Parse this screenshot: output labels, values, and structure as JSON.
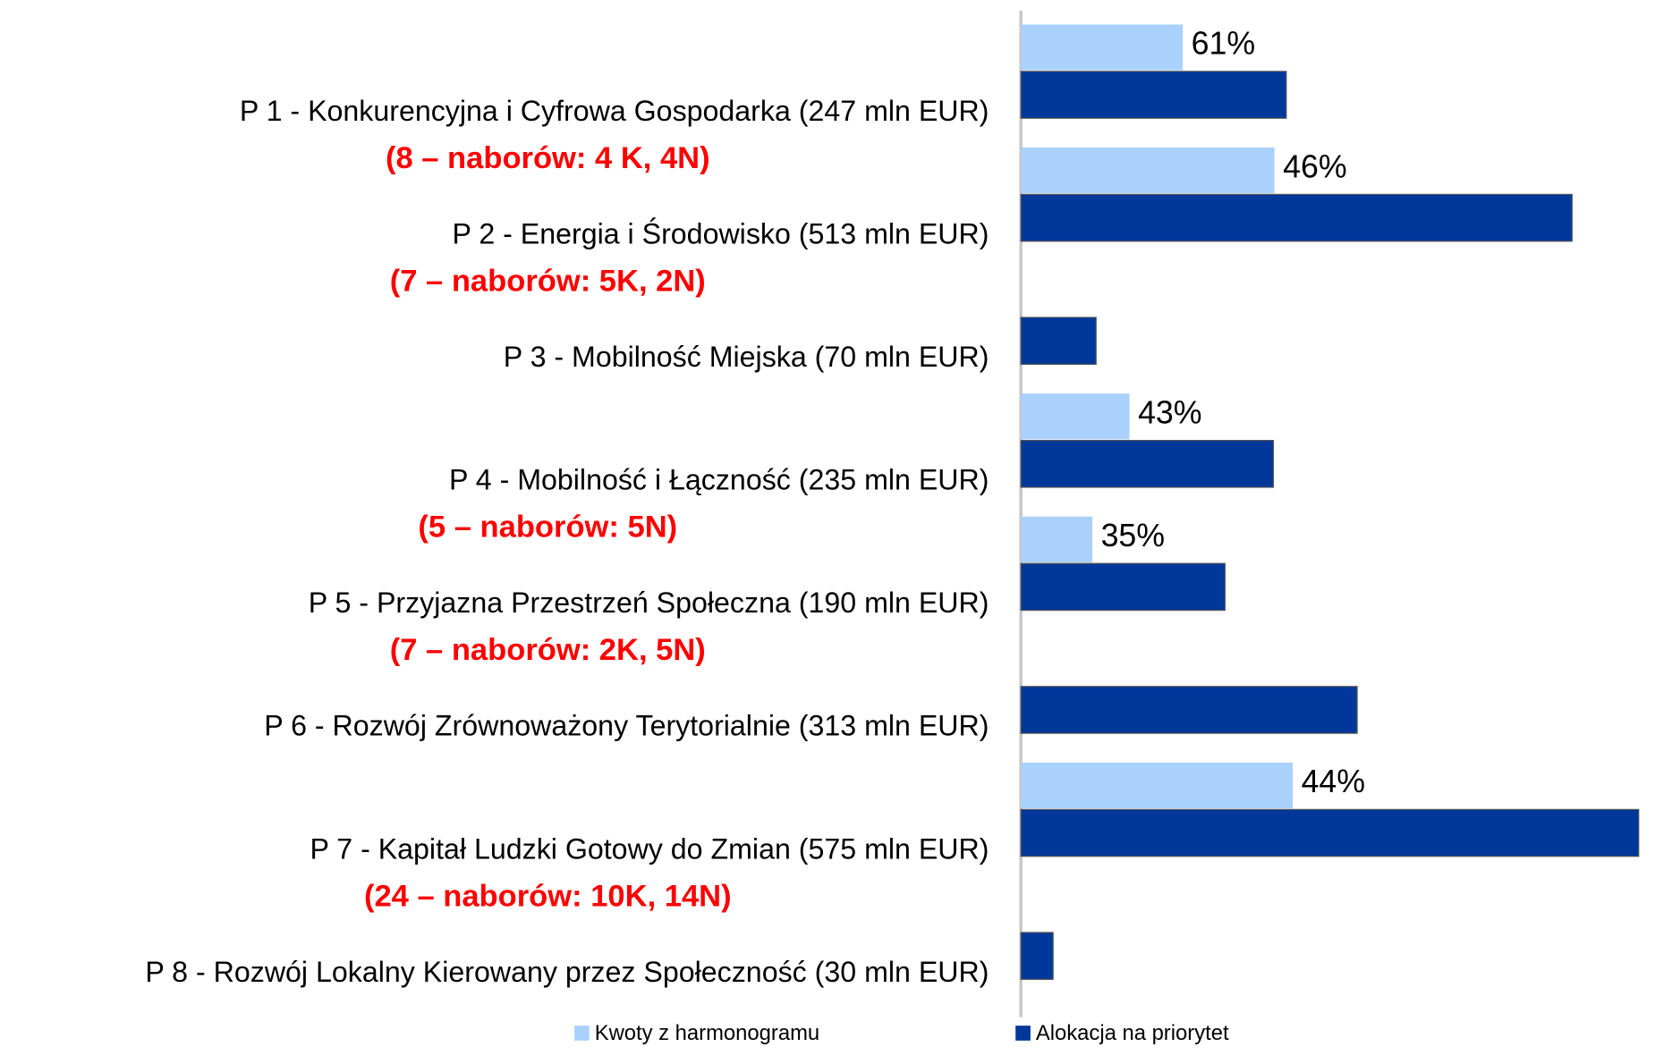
{
  "chart_data": {
    "type": "bar",
    "orientation": "horizontal",
    "categories": [
      "P 1 -  Konkurencyjna i Cyfrowa Gospodarka (247 mln EUR)",
      "P 2 -  Energia i Środowisko (513 mln EUR)",
      "P 3 - Mobilność Miejska (70 mln EUR)",
      "P 4 - Mobilność i Łączność (235 mln EUR)",
      "P 5 - Przyjazna Przestrzeń Społeczna (190 mln EUR)",
      "P 6 - Rozwój Zrównoważony Terytorialnie (313 mln EUR)",
      "P 7 - Kapitał Ludzki Gotowy do Zmian (575 mln EUR)",
      "P 8 - Rozwój Lokalny Kierowany przez Społeczność (30 mln EUR)"
    ],
    "notes": [
      "(8 – naborów: 4 K, 4N)",
      "(7 – naborów: 5K, 2N)",
      null,
      "(5 – naborów: 5N)",
      "(7 – naborów: 2K, 5N)",
      null,
      "(24 – naborów: 10K, 14N)",
      null
    ],
    "xlim": [
      0,
      606
    ],
    "series": [
      {
        "name": "Kwoty z harmonogramu",
        "color": "#a9d1fb",
        "values": [
          61,
          46,
          null,
          43,
          35,
          null,
          44,
          null
        ],
        "value_labels": [
          "61%",
          "46%",
          null,
          "43%",
          "35%",
          null,
          "44%",
          null
        ]
      },
      {
        "name": "Alokacja na priorytet",
        "color": "#00379a",
        "values": [
          247,
          513,
          70,
          235,
          190,
          313,
          575,
          30
        ]
      }
    ]
  }
}
